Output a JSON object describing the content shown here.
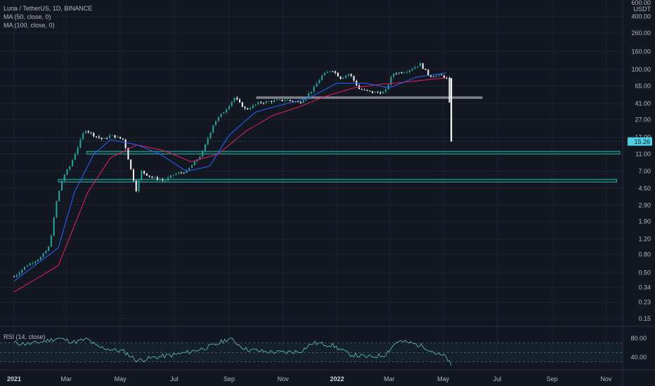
{
  "header": {
    "title": "Luna / TetherUS, 1D, BINANCE",
    "indicators": [
      "MA (50, close, 0)",
      "MA (100, close, 0)"
    ]
  },
  "price_axis": {
    "unit_top": "600.00",
    "unit": "USDT",
    "ticks": [
      "400.00",
      "260.00",
      "160.00",
      "100.00",
      "65.00",
      "41.00",
      "27.00",
      "17.00",
      "11.00",
      "7.00",
      "4.50",
      "2.90",
      "1.90",
      "1.20",
      "0.80",
      "0.50",
      "0.34",
      "0.23",
      "0.15"
    ],
    "current_price": "15.26"
  },
  "rsi": {
    "label": "RSI (14, close)",
    "ticks": [
      "80.00",
      "40.00"
    ]
  },
  "time_axis": {
    "labels": [
      {
        "text": "2021",
        "bold": true
      },
      {
        "text": "Mar",
        "bold": false
      },
      {
        "text": "May",
        "bold": false
      },
      {
        "text": "Jul",
        "bold": false
      },
      {
        "text": "Sep",
        "bold": false
      },
      {
        "text": "Nov",
        "bold": false
      },
      {
        "text": "2022",
        "bold": true
      },
      {
        "text": "Mar",
        "bold": false
      },
      {
        "text": "May",
        "bold": false
      },
      {
        "text": "Jul",
        "bold": false
      },
      {
        "text": "Sep",
        "bold": false
      },
      {
        "text": "Nov",
        "bold": false
      }
    ]
  },
  "colors": {
    "background": "#131722",
    "candle_up": "#26a69a",
    "candle_down": "#ffffff",
    "ma50": "#2962ff",
    "ma100": "#e91e63",
    "zone": "#26a69a",
    "resistance": "#b2b5be",
    "rsi_line": "#5ec4bf",
    "price_label_bg": "#4dd0e1"
  },
  "chart_data": {
    "type": "candlestick",
    "x_range": [
      "2021-01-01",
      "2022-11-15"
    ],
    "y_scale": "log",
    "y_range": [
      0.12,
      600
    ],
    "price_path": [
      [
        "2021-01-01",
        0.45
      ],
      [
        "2021-01-15",
        0.6
      ],
      [
        "2021-02-01",
        0.75
      ],
      [
        "2021-02-10",
        1.0
      ],
      [
        "2021-02-18",
        3.2
      ],
      [
        "2021-02-25",
        6.0
      ],
      [
        "2021-03-05",
        8.0
      ],
      [
        "2021-03-15",
        14.0
      ],
      [
        "2021-03-22",
        21.0
      ],
      [
        "2021-04-01",
        18.0
      ],
      [
        "2021-04-12",
        16.0
      ],
      [
        "2021-04-20",
        18.0
      ],
      [
        "2021-05-05",
        16.0
      ],
      [
        "2021-05-12",
        8.0
      ],
      [
        "2021-05-19",
        4.3
      ],
      [
        "2021-05-25",
        7.0
      ],
      [
        "2021-06-05",
        6.0
      ],
      [
        "2021-06-20",
        5.5
      ],
      [
        "2021-07-01",
        6.5
      ],
      [
        "2021-07-15",
        7.0
      ],
      [
        "2021-08-01",
        11.0
      ],
      [
        "2021-08-15",
        25.0
      ],
      [
        "2021-08-28",
        35.0
      ],
      [
        "2021-09-07",
        48.0
      ],
      [
        "2021-09-20",
        35.0
      ],
      [
        "2021-10-05",
        42.0
      ],
      [
        "2021-10-20",
        44.0
      ],
      [
        "2021-11-05",
        45.0
      ],
      [
        "2021-11-20",
        42.0
      ],
      [
        "2021-12-05",
        60.0
      ],
      [
        "2021-12-15",
        85.0
      ],
      [
        "2021-12-26",
        100.0
      ],
      [
        "2022-01-05",
        80.0
      ],
      [
        "2022-01-15",
        90.0
      ],
      [
        "2022-01-26",
        60.0
      ],
      [
        "2022-02-10",
        55.0
      ],
      [
        "2022-02-24",
        55.0
      ],
      [
        "2022-03-05",
        90.0
      ],
      [
        "2022-03-20",
        95.0
      ],
      [
        "2022-04-05",
        115.0
      ],
      [
        "2022-04-15",
        85.0
      ],
      [
        "2022-04-30",
        85.0
      ],
      [
        "2022-05-06",
        78.0
      ],
      [
        "2022-05-09",
        30.0
      ],
      [
        "2022-05-10",
        15.26
      ]
    ],
    "ma50_path": [
      [
        "2021-01-01",
        0.4
      ],
      [
        "2021-02-20",
        0.95
      ],
      [
        "2021-03-10",
        4.0
      ],
      [
        "2021-04-01",
        11.0
      ],
      [
        "2021-04-20",
        16.0
      ],
      [
        "2021-05-20",
        14.0
      ],
      [
        "2021-06-15",
        11.0
      ],
      [
        "2021-07-15",
        7.0
      ],
      [
        "2021-08-10",
        8.0
      ],
      [
        "2021-09-01",
        18.0
      ],
      [
        "2021-10-01",
        33.0
      ],
      [
        "2021-11-01",
        40.0
      ],
      [
        "2021-12-01",
        48.0
      ],
      [
        "2022-01-01",
        70.0
      ],
      [
        "2022-02-01",
        70.0
      ],
      [
        "2022-03-01",
        62.0
      ],
      [
        "2022-04-01",
        82.0
      ],
      [
        "2022-05-05",
        92.0
      ]
    ],
    "ma100_path": [
      [
        "2021-01-01",
        0.3
      ],
      [
        "2021-02-20",
        0.6
      ],
      [
        "2021-03-25",
        4.0
      ],
      [
        "2021-04-20",
        10.0
      ],
      [
        "2021-05-20",
        14.0
      ],
      [
        "2021-06-20",
        12.0
      ],
      [
        "2021-07-20",
        9.0
      ],
      [
        "2021-08-20",
        11.0
      ],
      [
        "2021-09-20",
        20.0
      ],
      [
        "2021-10-20",
        30.0
      ],
      [
        "2021-11-20",
        38.0
      ],
      [
        "2021-12-20",
        50.0
      ],
      [
        "2022-01-20",
        62.0
      ],
      [
        "2022-02-20",
        68.0
      ],
      [
        "2022-03-20",
        72.0
      ],
      [
        "2022-04-20",
        78.0
      ],
      [
        "2022-05-05",
        80.0
      ]
    ],
    "zones": [
      {
        "from": "2021-03-24",
        "to": "2022-11-20",
        "low": 11.0,
        "high": 11.8
      },
      {
        "from": "2021-02-20",
        "to": "2022-11-13",
        "low": 5.3,
        "high": 5.7
      }
    ],
    "resistance": {
      "from": "2021-10-02",
      "to": "2022-06-14",
      "price": 48.0
    },
    "current_price": 15.26,
    "rsi": {
      "range": [
        0,
        100
      ],
      "bands": [
        70,
        50,
        30
      ],
      "path": [
        [
          "2021-01-01",
          70
        ],
        [
          "2021-01-20",
          68
        ],
        [
          "2021-02-20",
          80
        ],
        [
          "2021-03-10",
          72
        ],
        [
          "2021-03-25",
          78
        ],
        [
          "2021-04-05",
          62
        ],
        [
          "2021-04-25",
          55
        ],
        [
          "2021-05-05",
          52
        ],
        [
          "2021-05-20",
          33
        ],
        [
          "2021-06-10",
          40
        ],
        [
          "2021-07-01",
          45
        ],
        [
          "2021-07-20",
          52
        ],
        [
          "2021-08-15",
          65
        ],
        [
          "2021-09-01",
          80
        ],
        [
          "2021-09-20",
          57
        ],
        [
          "2021-10-10",
          52
        ],
        [
          "2021-11-01",
          50
        ],
        [
          "2021-11-20",
          52
        ],
        [
          "2021-12-05",
          70
        ],
        [
          "2021-12-26",
          66
        ],
        [
          "2022-01-15",
          46
        ],
        [
          "2022-02-05",
          40
        ],
        [
          "2022-02-24",
          45
        ],
        [
          "2022-03-10",
          74
        ],
        [
          "2022-03-25",
          70
        ],
        [
          "2022-04-10",
          62
        ],
        [
          "2022-04-25",
          46
        ],
        [
          "2022-05-05",
          40
        ],
        [
          "2022-05-10",
          20
        ]
      ]
    }
  }
}
